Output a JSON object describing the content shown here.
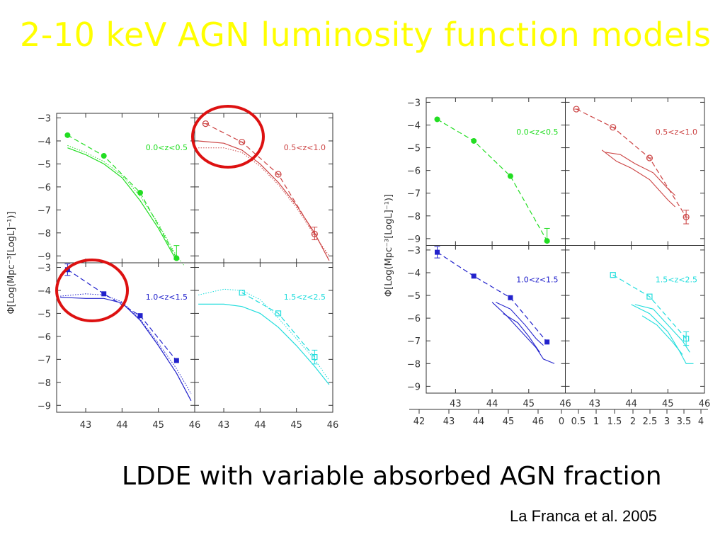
{
  "slide": {
    "title": "2-10 keV AGN luminosity function models",
    "subtitle": "LDDE with variable absorbed AGN fraction",
    "citation": "La Franca et al. 2005"
  },
  "colors": {
    "title": "#ffff00",
    "green": "#22dd22",
    "red": "#cc4444",
    "blue": "#2222cc",
    "cyan": "#22dddd",
    "highlight": "#dd1111"
  },
  "chart_data": [
    {
      "type": "line",
      "ylabel": "Φ[Log(Mpc⁻³[LogL]⁻¹)]",
      "xticks": [
        "43",
        "44",
        "45",
        "46"
      ],
      "yticks": [
        "−3",
        "−4",
        "−5",
        "−6",
        "−7",
        "−8",
        "−9"
      ],
      "xlim": [
        42.2,
        46
      ],
      "ylim": [
        -9.3,
        -2.8
      ],
      "panels": [
        {
          "label": "0.0<z<0.5",
          "color": "green",
          "points": [
            [
              42.5,
              -3.75
            ],
            [
              43.5,
              -4.65
            ],
            [
              44.5,
              -6.25
            ],
            [
              45.5,
              -9.1
            ]
          ],
          "error_bar_x": 45.5,
          "error_bar": [
            -8.55,
            -9.15
          ],
          "marker": "filled-circle",
          "model_solid": [
            [
              42.5,
              -4.3
            ],
            [
              43.0,
              -4.6
            ],
            [
              43.5,
              -5.0
            ],
            [
              44.0,
              -5.6
            ],
            [
              44.5,
              -6.6
            ],
            [
              45.0,
              -7.8
            ],
            [
              45.5,
              -9.2
            ]
          ],
          "model_dotted": [
            [
              42.5,
              -4.2
            ],
            [
              43.0,
              -4.5
            ],
            [
              43.5,
              -4.9
            ],
            [
              44.0,
              -5.5
            ],
            [
              44.5,
              -6.4
            ],
            [
              45.0,
              -7.6
            ],
            [
              45.5,
              -9.0
            ],
            [
              45.7,
              -9.4
            ]
          ]
        },
        {
          "label": "0.5<z<1.0",
          "color": "red",
          "points": [
            [
              42.5,
              -3.25
            ],
            [
              43.5,
              -4.05
            ],
            [
              44.5,
              -5.45
            ],
            [
              45.5,
              -8.05
            ]
          ],
          "error_bar_x": 45.5,
          "error_bar": [
            -7.75,
            -8.3
          ],
          "marker": "open-circle",
          "model_solid": [
            [
              42.3,
              -4.0
            ],
            [
              43.0,
              -4.1
            ],
            [
              43.5,
              -4.4
            ],
            [
              44.0,
              -5.0
            ],
            [
              44.5,
              -5.8
            ],
            [
              45.0,
              -6.8
            ],
            [
              45.5,
              -8.0
            ],
            [
              45.9,
              -9.2
            ]
          ],
          "model_dotted": [
            [
              42.3,
              -4.3
            ],
            [
              43.0,
              -4.3
            ],
            [
              43.5,
              -4.5
            ],
            [
              44.0,
              -5.1
            ],
            [
              44.5,
              -5.9
            ],
            [
              45.0,
              -6.9
            ],
            [
              45.5,
              -8.1
            ],
            [
              45.9,
              -9.0
            ]
          ]
        },
        {
          "label": "1.0<z<1.5",
          "color": "blue",
          "points": [
            [
              42.5,
              -3.1
            ],
            [
              43.5,
              -4.15
            ],
            [
              44.5,
              -5.1
            ],
            [
              45.5,
              -7.05
            ]
          ],
          "error_bar_x": 42.5,
          "error_bar": [
            -2.85,
            -3.35
          ],
          "marker": "filled-square",
          "model_solid": [
            [
              42.3,
              -4.3
            ],
            [
              43.0,
              -4.35
            ],
            [
              43.5,
              -4.35
            ],
            [
              44.0,
              -4.55
            ],
            [
              44.5,
              -5.3
            ],
            [
              45.0,
              -6.4
            ],
            [
              45.5,
              -7.6
            ],
            [
              45.9,
              -8.8
            ]
          ],
          "model_dotted": [
            [
              42.3,
              -4.25
            ],
            [
              43.0,
              -4.15
            ],
            [
              43.5,
              -4.2
            ],
            [
              44.0,
              -4.5
            ],
            [
              44.5,
              -5.25
            ],
            [
              45.0,
              -6.3
            ],
            [
              45.5,
              -7.4
            ],
            [
              45.9,
              -8.5
            ]
          ]
        },
        {
          "label": "1.5<z<2.5",
          "color": "cyan",
          "points": [
            [
              43.5,
              -4.1
            ],
            [
              44.5,
              -5.0
            ],
            [
              45.5,
              -6.9
            ]
          ],
          "error_bar_x": 45.5,
          "error_bar": [
            -6.6,
            -7.2
          ],
          "marker": "open-square",
          "model_solid": [
            [
              42.3,
              -4.6
            ],
            [
              43.0,
              -4.6
            ],
            [
              43.5,
              -4.7
            ],
            [
              44.0,
              -5.0
            ],
            [
              44.5,
              -5.6
            ],
            [
              45.0,
              -6.4
            ],
            [
              45.5,
              -7.3
            ],
            [
              45.9,
              -8.1
            ]
          ],
          "model_dotted": [
            [
              42.3,
              -4.2
            ],
            [
              43.0,
              -3.95
            ],
            [
              43.5,
              -4.0
            ],
            [
              44.0,
              -4.4
            ],
            [
              44.5,
              -5.2
            ],
            [
              45.0,
              -6.1
            ],
            [
              45.5,
              -7.0
            ],
            [
              45.9,
              -7.9
            ]
          ]
        }
      ]
    },
    {
      "type": "line",
      "ylabel": "Φ[Log(Mpc⁻³[LogL]⁻¹)]",
      "xticks": [
        "43",
        "44",
        "45",
        "46"
      ],
      "yticks": [
        "−3",
        "−4",
        "−5",
        "−6",
        "−7",
        "−8",
        "−9"
      ],
      "xlim": [
        42.2,
        46
      ],
      "ylim": [
        -9.3,
        -2.8
      ],
      "bottom_scale_labels": [
        "42",
        "43",
        "44",
        "45",
        "46",
        "0",
        "0.5",
        "1",
        "1.5",
        "2",
        "2.5",
        "3",
        "3.5",
        "4"
      ],
      "panels": [
        {
          "label": "0.0<z<0.5",
          "color": "green",
          "points": [
            [
              42.5,
              -3.75
            ],
            [
              43.5,
              -4.7
            ],
            [
              44.5,
              -6.25
            ],
            [
              45.5,
              -9.1
            ]
          ],
          "error_bar_x": 45.5,
          "error_bar": [
            -8.55,
            -9.15
          ],
          "marker": "filled-circle",
          "models": []
        },
        {
          "label": "0.5<z<1.0",
          "color": "red",
          "points": [
            [
              42.5,
              -3.3
            ],
            [
              43.5,
              -4.1
            ],
            [
              44.5,
              -5.45
            ],
            [
              45.5,
              -8.05
            ]
          ],
          "error_bar_x": 45.5,
          "error_bar": [
            -7.75,
            -8.35
          ],
          "marker": "open-circle",
          "models": [
            [
              [
                43.2,
                -5.1
              ],
              [
                43.6,
                -5.6
              ],
              [
                44.0,
                -5.9
              ],
              [
                44.5,
                -6.4
              ],
              [
                45.0,
                -7.3
              ],
              [
                45.2,
                -7.6
              ]
            ],
            [
              [
                43.3,
                -5.2
              ],
              [
                43.7,
                -5.3
              ],
              [
                44.1,
                -5.7
              ],
              [
                44.6,
                -6.1
              ],
              [
                45.0,
                -6.8
              ],
              [
                45.2,
                -7.1
              ]
            ]
          ]
        },
        {
          "label": "1.0<z<1.5",
          "color": "blue",
          "points": [
            [
              42.5,
              -3.1
            ],
            [
              43.5,
              -4.15
            ],
            [
              44.5,
              -5.1
            ],
            [
              45.5,
              -7.05
            ]
          ],
          "error_bar_x": 42.5,
          "error_bar": [
            -2.85,
            -3.35
          ],
          "marker": "filled-square",
          "models": [
            [
              [
                44.0,
                -5.3
              ],
              [
                44.4,
                -5.9
              ],
              [
                44.8,
                -6.6
              ],
              [
                45.2,
                -7.3
              ],
              [
                45.4,
                -7.8
              ],
              [
                45.7,
                -8.0
              ]
            ],
            [
              [
                44.1,
                -5.3
              ],
              [
                44.5,
                -5.6
              ],
              [
                44.9,
                -6.3
              ],
              [
                45.2,
                -6.9
              ],
              [
                45.4,
                -7.2
              ]
            ],
            [
              [
                44.3,
                -5.8
              ],
              [
                44.7,
                -6.2
              ],
              [
                45.0,
                -6.8
              ],
              [
                45.3,
                -7.5
              ]
            ]
          ]
        },
        {
          "label": "1.5<z<2.5",
          "color": "cyan",
          "points": [
            [
              43.5,
              -4.1
            ],
            [
              44.5,
              -5.05
            ],
            [
              45.5,
              -6.9
            ]
          ],
          "error_bar_x": 45.5,
          "error_bar": [
            -6.6,
            -7.2
          ],
          "marker": "open-square",
          "models": [
            [
              [
                44.0,
                -5.4
              ],
              [
                44.5,
                -5.8
              ],
              [
                45.0,
                -6.6
              ],
              [
                45.3,
                -7.4
              ],
              [
                45.5,
                -8.0
              ],
              [
                45.7,
                -8.0
              ]
            ],
            [
              [
                44.1,
                -5.4
              ],
              [
                44.6,
                -5.6
              ],
              [
                45.0,
                -6.3
              ],
              [
                45.4,
                -7.0
              ],
              [
                45.6,
                -7.5
              ]
            ],
            [
              [
                44.3,
                -5.9
              ],
              [
                44.7,
                -6.3
              ],
              [
                45.1,
                -7.0
              ],
              [
                45.4,
                -7.6
              ]
            ]
          ]
        }
      ]
    }
  ]
}
